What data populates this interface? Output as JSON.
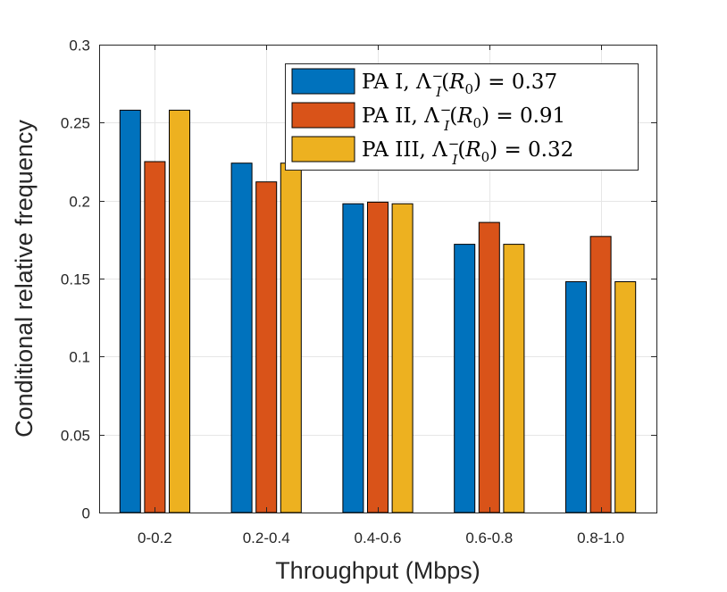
{
  "chart_data": {
    "type": "bar",
    "categories": [
      "0-0.2",
      "0.2-0.4",
      "0.4-0.6",
      "0.6-0.8",
      "0.8-1.0"
    ],
    "series": [
      {
        "name": "PA I",
        "lambda_value": "0.37",
        "color": "#0072BD",
        "values": [
          0.258,
          0.224,
          0.198,
          0.172,
          0.148
        ]
      },
      {
        "name": "PA II",
        "lambda_value": "0.91",
        "color": "#D95319",
        "values": [
          0.225,
          0.212,
          0.199,
          0.186,
          0.177
        ]
      },
      {
        "name": "PA III",
        "lambda_value": "0.32",
        "color": "#EDB120",
        "values": [
          0.258,
          0.224,
          0.198,
          0.172,
          0.148
        ]
      }
    ],
    "xlabel": "Throughput (Mbps)",
    "ylabel": "Conditional relative frequency",
    "ylim": [
      0,
      0.3
    ],
    "yticks": [
      "0",
      "0.05",
      "0.1",
      "0.15",
      "0.2",
      "0.25",
      "0.3"
    ],
    "grid": true,
    "legend_position": "top-right",
    "legend_equation_symbol": "Λ",
    "legend_equation_sup": "−",
    "legend_equation_sub": "I",
    "legend_equation_arg": "R",
    "legend_equation_arg_sub": "0"
  }
}
